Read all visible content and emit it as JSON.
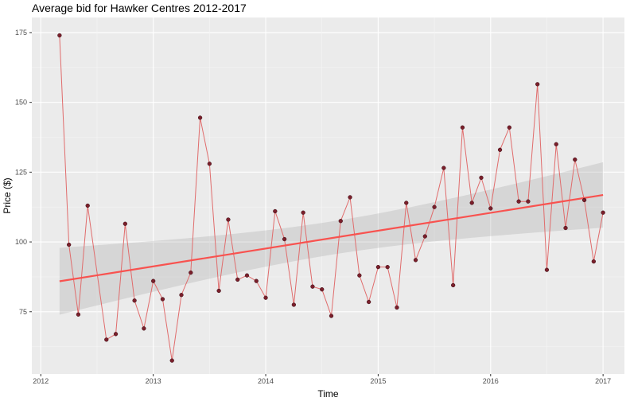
{
  "chart_data": {
    "type": "line",
    "title": "Average bid for Hawker Centres 2012-2017",
    "xlabel": "Time",
    "ylabel": "Price ($)",
    "xlim": [
      2011.92,
      2017.19
    ],
    "ylim": [
      52.7,
      180.4
    ],
    "x_ticks": [
      2012,
      2013,
      2014,
      2015,
      2016,
      2017
    ],
    "x_tick_labels": [
      "2012",
      "2013",
      "2014",
      "2015",
      "2016",
      "2017"
    ],
    "y_ticks": [
      75,
      100,
      125,
      150,
      175
    ],
    "y_tick_labels": [
      "75",
      "100",
      "125",
      "150",
      "175"
    ],
    "grid": true,
    "legend": "none",
    "smooth": "linear fit with confidence band",
    "colors": {
      "line": "#e06c6c",
      "point": "#7a1f2b",
      "fit": "#f8524f",
      "band": "#d6d6d6",
      "panel": "#ebebeb"
    },
    "x": [
      "2012-03",
      "2012-04",
      "2012-05",
      "2012-06",
      "2012-08",
      "2012-09",
      "2012-10",
      "2012-11",
      "2012-12",
      "2013-01",
      "2013-02",
      "2013-03",
      "2013-04",
      "2013-05",
      "2013-06",
      "2013-07",
      "2013-08",
      "2013-09",
      "2013-10",
      "2013-11",
      "2013-12",
      "2014-01",
      "2014-02",
      "2014-03",
      "2014-04",
      "2014-05",
      "2014-06",
      "2014-07",
      "2014-08",
      "2014-09",
      "2014-10",
      "2014-11",
      "2014-12",
      "2015-01",
      "2015-02",
      "2015-03",
      "2015-04",
      "2015-05",
      "2015-06",
      "2015-07",
      "2015-08",
      "2015-09",
      "2015-10",
      "2015-11",
      "2015-12",
      "2016-01",
      "2016-02",
      "2016-03",
      "2016-04",
      "2016-05",
      "2016-06",
      "2016-07",
      "2016-08",
      "2016-09",
      "2016-10",
      "2016-11",
      "2016-12",
      "2017-01"
    ],
    "values": [
      174,
      99,
      74,
      113,
      65,
      67,
      106.5,
      79,
      69,
      86,
      79.5,
      57.5,
      81,
      89,
      144.5,
      128,
      82.5,
      108,
      86.5,
      88,
      86,
      80,
      111,
      101,
      77.5,
      110.5,
      84,
      83,
      73.5,
      107.5,
      116,
      88,
      78.5,
      91,
      91,
      76.5,
      114,
      93.5,
      102,
      112.5,
      126.5,
      84.5,
      141,
      114,
      123,
      112,
      133,
      141,
      114.5,
      114.5,
      156.5,
      90,
      135,
      105,
      129.5,
      115,
      93,
      110.5
    ]
  }
}
